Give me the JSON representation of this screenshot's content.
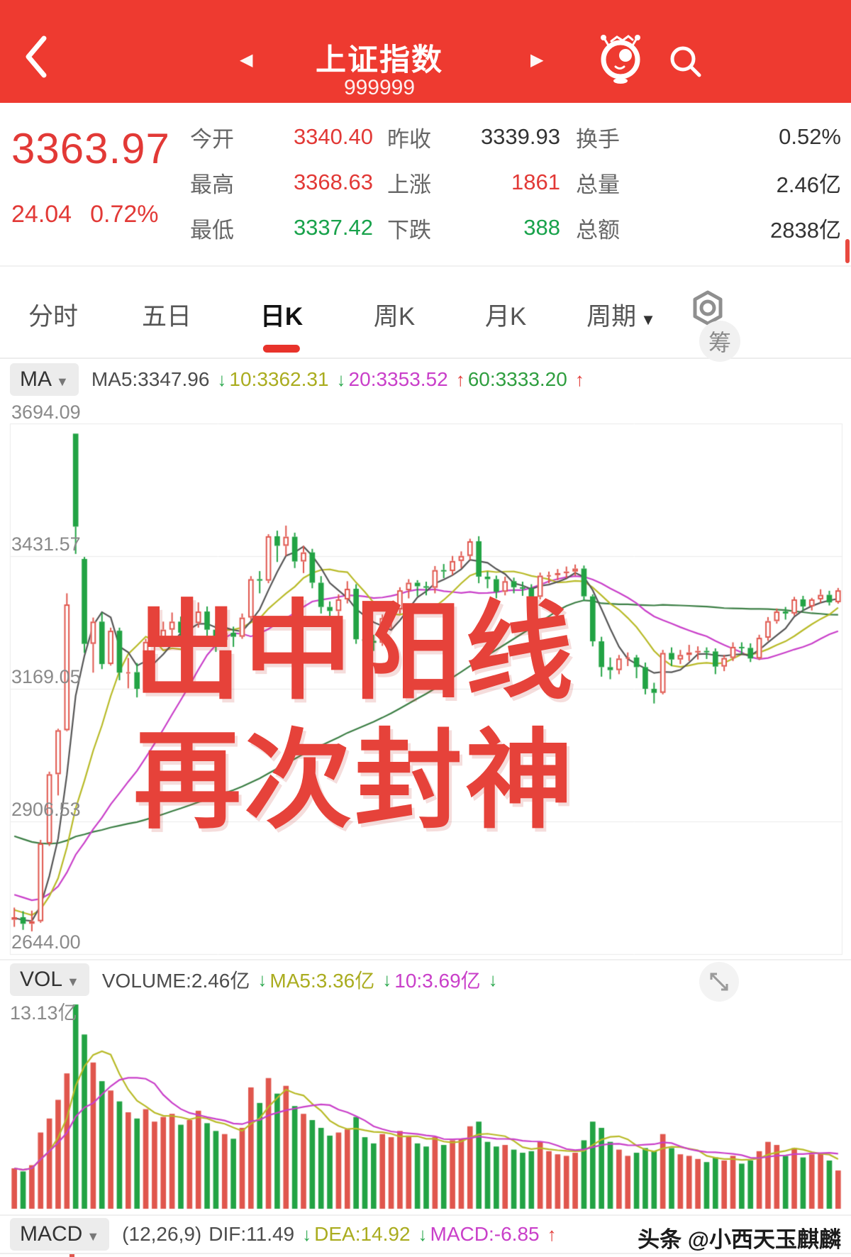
{
  "header": {
    "title": "上证指数",
    "code": "999999"
  },
  "quote": {
    "price": "3363.97",
    "change": "24.04",
    "change_pct": "0.72%",
    "stats": [
      {
        "label": "今开",
        "value": "3340.40"
      },
      {
        "label": "昨收",
        "value": "3339.93"
      },
      {
        "label": "换手",
        "value": "0.52%"
      },
      {
        "label": "最高",
        "value": "3368.63"
      },
      {
        "label": "上涨",
        "value": "1861"
      },
      {
        "label": "总量",
        "value": "2.46亿"
      },
      {
        "label": "最低",
        "value": "3337.42"
      },
      {
        "label": "下跌",
        "value": "388"
      },
      {
        "label": "总额",
        "value": "2838亿"
      }
    ]
  },
  "tabs": {
    "items": [
      "分时",
      "五日",
      "日K",
      "周K",
      "月K",
      "周期"
    ],
    "active": "日K"
  },
  "arrows": {
    "up": "↑",
    "down": "↓"
  },
  "ma_row": {
    "selector": "MA",
    "segments": [
      {
        "text": "MA5:3347.96"
      },
      {
        "text": "10:3362.31"
      },
      {
        "text": "20:3353.52"
      },
      {
        "text": "60:3333.20"
      }
    ],
    "chips_button": "筹"
  },
  "vol_row": {
    "selector": "VOL",
    "segments": [
      {
        "text": "VOLUME:2.46亿"
      },
      {
        "text": "MA5:3.36亿"
      },
      {
        "text": "10:3.69亿"
      }
    ],
    "max_label": "13.13亿"
  },
  "macd_row": {
    "selector": "MACD",
    "params": "(12,26,9)",
    "segments": [
      {
        "text": "DIF:11.49"
      },
      {
        "text": "DEA:14.92"
      },
      {
        "text": "MACD:-6.85"
      }
    ]
  },
  "watermark": {
    "line1": "出中阳线",
    "line2": "再次封神"
  },
  "branding": "头条 @小西天玉麒麟",
  "colors": {
    "header_red": "#ee3a30",
    "price_red": "#e23936",
    "value_green": "#18a24b",
    "up_candle": "#e0564d",
    "down_candle": "#22a344",
    "ma5": "#555555",
    "ma10": "#b8ba27",
    "ma20": "#c93fc9",
    "ma60": "#3b7e44",
    "grid": "#ebebeb",
    "watermark_red": "#e6423a"
  },
  "chart_data": {
    "type": "candlestick",
    "title": "上证指数 日K",
    "y_axis_labels": [
      "3694.09",
      "3431.57",
      "3169.05",
      "2906.53",
      "2644.00"
    ],
    "y_gridline_values": [
      3694.09,
      3431.57,
      3169.05,
      2906.53,
      2644.0
    ],
    "ylim": [
      2644.0,
      3694.09
    ],
    "vol_max": 13.13,
    "ma": [
      {
        "window": 60,
        "color": "#3b7e44"
      },
      {
        "window": 20,
        "color": "#c93fc9"
      },
      {
        "window": 10,
        "color": "#b8ba27"
      },
      {
        "window": 5,
        "color": "#555555"
      }
    ],
    "vol_ma": [
      {
        "window": 5,
        "color": "#b8ba27"
      },
      {
        "window": 10,
        "color": "#c93fc9"
      }
    ],
    "prior_closes": [
      3058,
      3052,
      3045,
      3038,
      3030,
      3022,
      3028,
      3015,
      3008,
      3000,
      2995,
      2988,
      2980,
      2972,
      2978,
      2965,
      2958,
      2950,
      2945,
      2952,
      2940,
      2932,
      2925,
      2918,
      2922,
      2910,
      2902,
      2895,
      2888,
      2892,
      2880,
      2872,
      2865,
      2858,
      2862,
      2850,
      2842,
      2848,
      2838,
      2830,
      2822,
      2815,
      2820,
      2808,
      2800,
      2792,
      2785,
      2790,
      2778,
      2770,
      2762,
      2755,
      2760,
      2748,
      2740,
      2732,
      2725,
      2718,
      2712,
      2706
    ],
    "candles": [
      [
        2712,
        2736,
        2698,
        2717
      ],
      [
        2717,
        2729,
        2692,
        2704
      ],
      [
        2704,
        2730,
        2689,
        2709
      ],
      [
        2709,
        2870,
        2706,
        2863
      ],
      [
        2863,
        3005,
        2858,
        3000
      ],
      [
        3000,
        3090,
        2958,
        3087
      ],
      [
        3087,
        3358,
        3085,
        3336
      ],
      [
        3674,
        3674,
        3436,
        3490
      ],
      [
        3426,
        3430,
        3240,
        3258
      ],
      [
        3258,
        3310,
        3201,
        3302
      ],
      [
        3302,
        3320,
        3208,
        3218
      ],
      [
        3218,
        3290,
        3215,
        3284
      ],
      [
        3284,
        3290,
        3186,
        3201
      ],
      [
        3201,
        3230,
        3170,
        3202
      ],
      [
        3202,
        3220,
        3152,
        3169
      ],
      [
        3169,
        3268,
        3162,
        3262
      ],
      [
        3262,
        3288,
        3245,
        3268
      ],
      [
        3268,
        3302,
        3252,
        3286
      ],
      [
        3286,
        3320,
        3268,
        3302
      ],
      [
        3302,
        3312,
        3252,
        3280
      ],
      [
        3280,
        3310,
        3262,
        3299
      ],
      [
        3299,
        3340,
        3290,
        3322
      ],
      [
        3322,
        3332,
        3270,
        3286
      ],
      [
        3286,
        3298,
        3242,
        3266
      ],
      [
        3266,
        3300,
        3252,
        3280
      ],
      [
        3280,
        3292,
        3252,
        3272
      ],
      [
        3272,
        3318,
        3268,
        3310
      ],
      [
        3310,
        3392,
        3305,
        3386
      ],
      [
        3386,
        3402,
        3358,
        3383
      ],
      [
        3383,
        3475,
        3378,
        3471
      ],
      [
        3471,
        3482,
        3420,
        3452
      ],
      [
        3452,
        3492,
        3432,
        3470
      ],
      [
        3470,
        3478,
        3408,
        3421
      ],
      [
        3421,
        3452,
        3398,
        3439
      ],
      [
        3439,
        3446,
        3368,
        3379
      ],
      [
        3379,
        3392,
        3318,
        3331
      ],
      [
        3331,
        3342,
        3298,
        3323
      ],
      [
        3323,
        3356,
        3312,
        3346
      ],
      [
        3346,
        3382,
        3338,
        3367
      ],
      [
        3367,
        3376,
        3258,
        3267
      ],
      [
        3267,
        3282,
        3238,
        3264
      ],
      [
        3264,
        3276,
        3244,
        3260
      ],
      [
        3260,
        3316,
        3254,
        3309
      ],
      [
        3309,
        3332,
        3288,
        3326
      ],
      [
        3326,
        3370,
        3318,
        3364
      ],
      [
        3364,
        3386,
        3348,
        3379
      ],
      [
        3379,
        3384,
        3352,
        3372
      ],
      [
        3372,
        3381,
        3354,
        3369
      ],
      [
        3369,
        3412,
        3358,
        3404
      ],
      [
        3404,
        3416,
        3388,
        3402
      ],
      [
        3402,
        3432,
        3394,
        3422
      ],
      [
        3422,
        3441,
        3408,
        3432
      ],
      [
        3432,
        3466,
        3424,
        3461
      ],
      [
        3461,
        3471,
        3378,
        3391
      ],
      [
        3391,
        3401,
        3368,
        3386
      ],
      [
        3386,
        3393,
        3348,
        3361
      ],
      [
        3361,
        3391,
        3354,
        3382
      ],
      [
        3382,
        3389,
        3358,
        3370
      ],
      [
        3370,
        3381,
        3353,
        3368
      ],
      [
        3368,
        3376,
        3338,
        3351
      ],
      [
        3351,
        3399,
        3346,
        3393
      ],
      [
        3393,
        3401,
        3378,
        3394
      ],
      [
        3394,
        3406,
        3384,
        3398
      ],
      [
        3398,
        3411,
        3388,
        3401
      ],
      [
        3401,
        3415,
        3393,
        3407
      ],
      [
        3407,
        3413,
        3343,
        3352
      ],
      [
        3352,
        3356,
        3253,
        3263
      ],
      [
        3263,
        3272,
        3193,
        3212
      ],
      [
        3212,
        3231,
        3188,
        3206
      ],
      [
        3206,
        3236,
        3198,
        3229
      ],
      [
        3229,
        3241,
        3214,
        3231
      ],
      [
        3231,
        3236,
        3190,
        3212
      ],
      [
        3212,
        3221,
        3158,
        3169
      ],
      [
        3169,
        3181,
        3140,
        3161
      ],
      [
        3161,
        3246,
        3158,
        3240
      ],
      [
        3240,
        3251,
        3214,
        3227
      ],
      [
        3227,
        3246,
        3218,
        3236
      ],
      [
        3236,
        3256,
        3224,
        3241
      ],
      [
        3241,
        3253,
        3227,
        3244
      ],
      [
        3244,
        3251,
        3228,
        3243
      ],
      [
        3243,
        3249,
        3198,
        3213
      ],
      [
        3213,
        3236,
        3204,
        3230
      ],
      [
        3230,
        3261,
        3224,
        3252
      ],
      [
        3252,
        3261,
        3238,
        3250
      ],
      [
        3250,
        3259,
        3222,
        3229
      ],
      [
        3229,
        3276,
        3226,
        3270
      ],
      [
        3270,
        3311,
        3264,
        3303
      ],
      [
        3303,
        3328,
        3298,
        3322
      ],
      [
        3322,
        3331,
        3306,
        3318
      ],
      [
        3318,
        3351,
        3314,
        3346
      ],
      [
        3346,
        3353,
        3324,
        3332
      ],
      [
        3332,
        3349,
        3324,
        3346
      ],
      [
        3346,
        3366,
        3339,
        3355
      ],
      [
        3355,
        3363,
        3334,
        3340
      ],
      [
        3340.4,
        3368.63,
        3337.42,
        3363.97
      ]
    ],
    "volumes": [
      2.6,
      2.4,
      2.8,
      4.9,
      5.8,
      7.0,
      8.7,
      13.13,
      11.2,
      9.4,
      8.2,
      7.6,
      6.9,
      6.2,
      5.8,
      6.4,
      5.6,
      5.9,
      6.1,
      5.4,
      5.7,
      6.3,
      5.5,
      5.0,
      4.8,
      4.5,
      5.2,
      7.8,
      6.8,
      8.4,
      7.4,
      7.9,
      6.6,
      6.1,
      5.7,
      5.2,
      4.7,
      4.9,
      5.1,
      5.9,
      4.6,
      4.2,
      4.8,
      4.6,
      5.0,
      4.7,
      4.2,
      4.0,
      4.6,
      4.1,
      4.4,
      4.5,
      5.3,
      5.6,
      4.3,
      4.0,
      4.1,
      3.8,
      3.6,
      3.7,
      4.3,
      3.7,
      3.5,
      3.4,
      3.6,
      4.4,
      5.6,
      5.2,
      4.3,
      3.8,
      3.4,
      3.6,
      3.9,
      3.7,
      4.8,
      3.9,
      3.5,
      3.4,
      3.2,
      3.0,
      3.3,
      3.1,
      3.4,
      2.9,
      3.1,
      3.7,
      4.3,
      4.1,
      3.4,
      3.9,
      3.3,
      3.5,
      3.6,
      3.1,
      2.46
    ]
  }
}
